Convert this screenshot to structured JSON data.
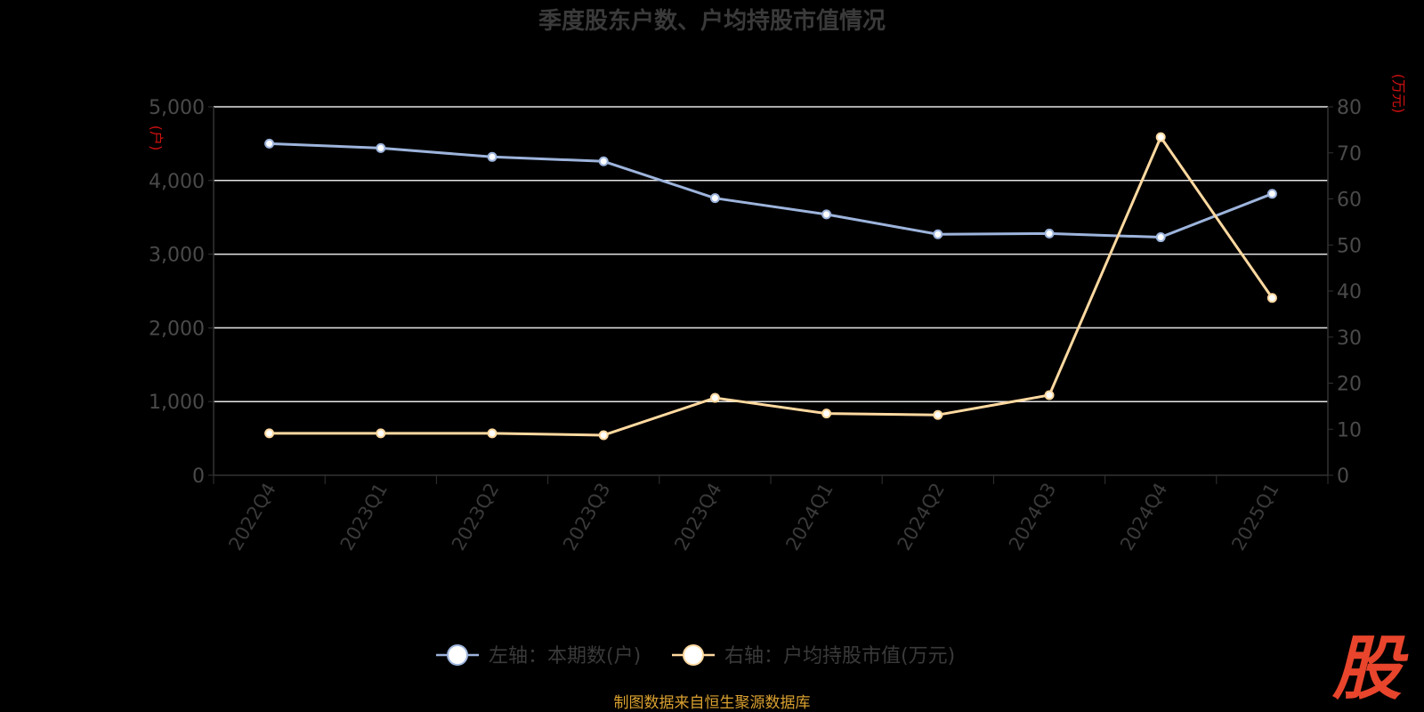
{
  "chart_data": {
    "type": "line",
    "title": "季度股东户数、户均持股市值情况",
    "categories": [
      "2022Q4",
      "2023Q1",
      "2023Q2",
      "2023Q3",
      "2023Q4",
      "2024Q1",
      "2024Q2",
      "2024Q3",
      "2024Q4",
      "2025Q1"
    ],
    "left_axis": {
      "unit": "(户)",
      "ylim": [
        0,
        5000
      ],
      "ticks": [
        "0",
        "1,000",
        "2,000",
        "3,000",
        "4,000",
        "5,000"
      ]
    },
    "right_axis": {
      "unit": "(万元)",
      "ylim": [
        0,
        80
      ],
      "ticks": [
        "0",
        "10",
        "20",
        "30",
        "40",
        "50",
        "60",
        "70",
        "80"
      ]
    },
    "series": [
      {
        "name": "左轴：本期数(户)",
        "axis": "left",
        "color": "#9db4dc",
        "values": [
          4500,
          4440,
          4320,
          4260,
          3760,
          3540,
          3270,
          3280,
          3230,
          3820
        ]
      },
      {
        "name": "右轴：户均持股市值(万元)",
        "axis": "right",
        "color": "#ffd9a0",
        "values": [
          9.1,
          9.1,
          9.1,
          8.7,
          16.8,
          13.4,
          13.1,
          17.4,
          73.4,
          38.5
        ]
      }
    ],
    "grid": true,
    "legend_position": "bottom"
  },
  "source": "制图数据来自恒生聚源数据库",
  "logo": "股"
}
